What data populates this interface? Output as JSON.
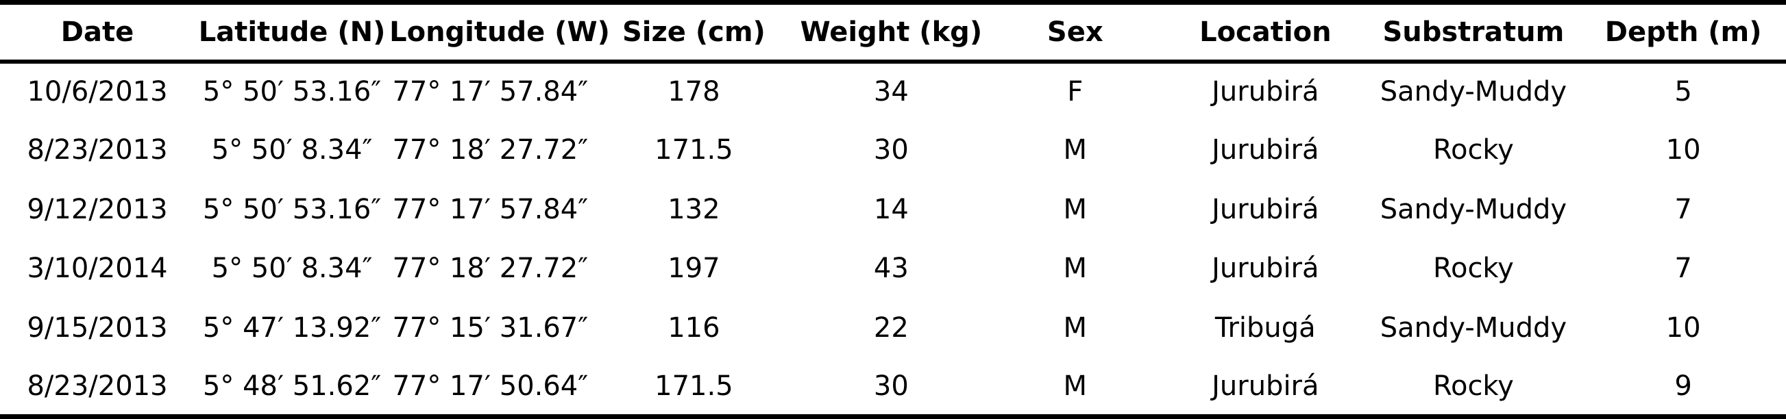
{
  "table": {
    "columns": [
      {
        "key": "date",
        "label": "Date"
      },
      {
        "key": "latitude",
        "label": "Latitude (N)"
      },
      {
        "key": "longitude",
        "label": "Longitude (W)"
      },
      {
        "key": "size",
        "label": "Size (cm)"
      },
      {
        "key": "weight",
        "label": "Weight (kg)"
      },
      {
        "key": "sex",
        "label": "Sex"
      },
      {
        "key": "location",
        "label": "Location"
      },
      {
        "key": "substratum",
        "label": "Substratum"
      },
      {
        "key": "depth",
        "label": "Depth (m)"
      }
    ],
    "rows": [
      [
        "10/6/2013",
        "5° 50′ 53.16″",
        "77° 17′ 57.84″",
        "178",
        "34",
        "F",
        "Jurubirá",
        "Sandy-Muddy",
        "5"
      ],
      [
        "8/23/2013",
        "5° 50′ 8.34″",
        "77° 18′ 27.72″",
        "171.5",
        "30",
        "M",
        "Jurubirá",
        "Rocky",
        "10"
      ],
      [
        "9/12/2013",
        "5° 50′ 53.16″",
        "77° 17′ 57.84″",
        "132",
        "14",
        "M",
        "Jurubirá",
        "Sandy-Muddy",
        "7"
      ],
      [
        "3/10/2014",
        "5° 50′ 8.34″",
        "77° 18′ 27.72″",
        "197",
        "43",
        "M",
        "Jurubirá",
        "Rocky",
        "7"
      ],
      [
        "9/15/2013",
        "5° 47′ 13.92″",
        "77° 15′ 31.67″",
        "116",
        "22",
        "M",
        "Tribugá",
        "Sandy-Muddy",
        "10"
      ],
      [
        "8/23/2013",
        "5° 48′ 51.62″",
        "77° 17′ 50.64″",
        "171.5",
        "30",
        "M",
        "Jurubirá",
        "Rocky",
        "9"
      ]
    ],
    "colors": {
      "text": "#000000",
      "background": "#ffffff",
      "rule": "#000000"
    }
  }
}
